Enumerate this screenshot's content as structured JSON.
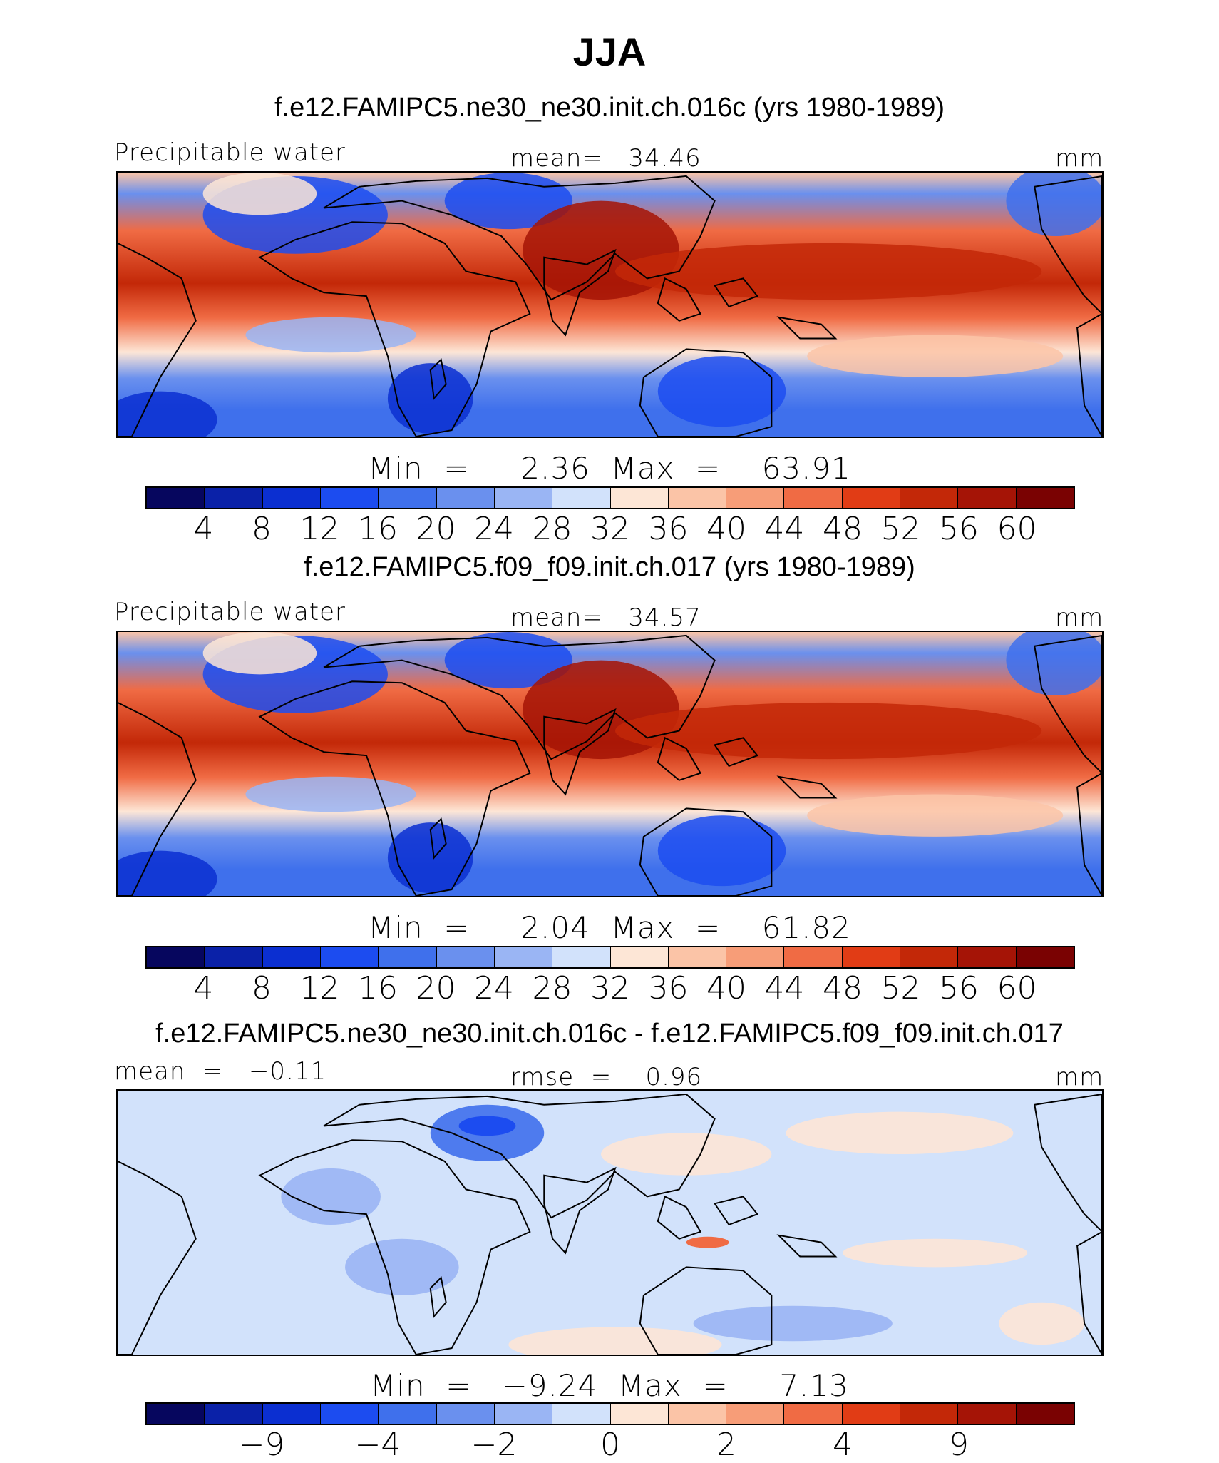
{
  "title": "JJA",
  "colors": {
    "palette": [
      "#06065e",
      "#0a21a8",
      "#0b2fd1",
      "#1c4cf0",
      "#3f70ec",
      "#6a90ee",
      "#9ab5f4",
      "#d2e2fb",
      "#fde6d6",
      "#fbc4a7",
      "#f79d78",
      "#f06b44",
      "#e13c15",
      "#c32808",
      "#a51406",
      "#7a0202"
    ],
    "land_outline": "#000000"
  },
  "panels": [
    {
      "case": "f.e12.FAMIPC5.ne30_ne30.init.ch.016c (yrs 1980-1989)",
      "left_label": "Precipitable water",
      "center_label": "mean=   34.46",
      "right_label": "mm",
      "minmax": "Min  =     2.36  Max  =    63.91",
      "ticks": [
        "4",
        "8",
        "12",
        "16",
        "20",
        "24",
        "28",
        "32",
        "36",
        "40",
        "44",
        "48",
        "52",
        "56",
        "60"
      ],
      "style": "field"
    },
    {
      "case": "f.e12.FAMIPC5.f09_f09.init.ch.017 (yrs 1980-1989)",
      "left_label": "Precipitable water",
      "center_label": "mean=   34.57",
      "right_label": "mm",
      "minmax": "Min  =     2.04  Max  =    61.82",
      "ticks": [
        "4",
        "8",
        "12",
        "16",
        "20",
        "24",
        "28",
        "32",
        "36",
        "40",
        "44",
        "48",
        "52",
        "56",
        "60"
      ],
      "style": "field"
    },
    {
      "case": "f.e12.FAMIPC5.ne30_ne30.init.ch.016c - f.e12.FAMIPC5.f09_f09.init.ch.017",
      "left_label": "mean  =   −0.11",
      "center_label": "rmse  =    0.96",
      "right_label": "mm",
      "minmax": "Min  =   −9.24  Max  =     7.13",
      "ticks": [
        "−9",
        "",
        "−4",
        "",
        "−2",
        "",
        "0",
        "",
        "2",
        "",
        "4",
        "",
        "9"
      ],
      "style": "diff"
    }
  ]
}
